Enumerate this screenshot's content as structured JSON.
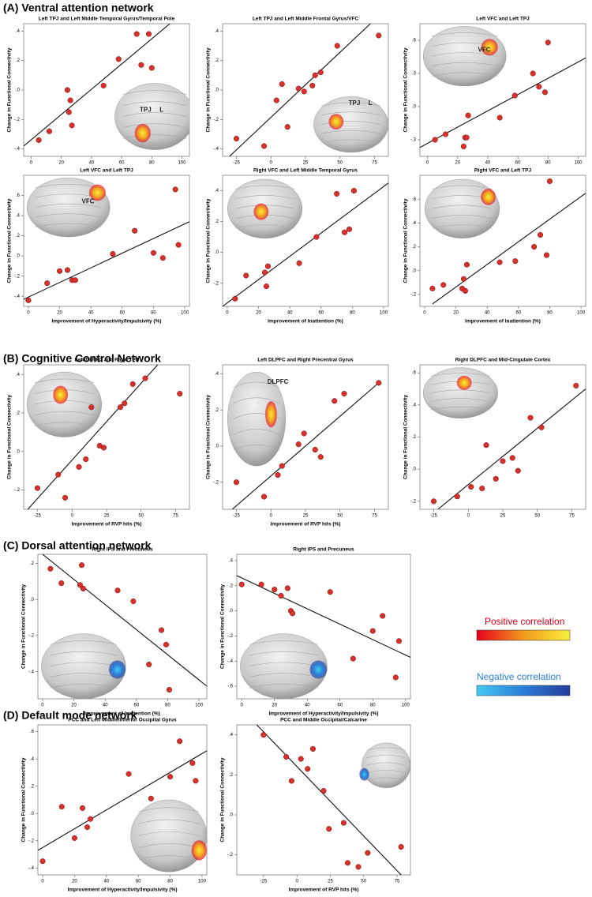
{
  "sections": [
    "(A) Ventral attention network",
    "(B) Cognitive Control Network",
    "(C) Dorsal attention network",
    "(D) Default mode network"
  ],
  "legend": {
    "positive": "Positive correlation",
    "negative": "Negative correlation"
  },
  "chart_data": [
    {
      "type": "scatter",
      "title": "Left TPJ and Left Middle Temporal Gyrus/Temporal Pole",
      "y_label": "Change in Functional Connectivity",
      "color": "#d9302c",
      "xlim": [
        -5,
        105
      ],
      "xticks": [
        0,
        20,
        40,
        60,
        80,
        100
      ],
      "ylim": [
        -0.45,
        0.45
      ],
      "yticks": [
        {
          "value": 0.4,
          "label": ".4"
        },
        {
          "value": 0.2,
          "label": ".2"
        },
        {
          "value": 0,
          "label": ".0"
        },
        {
          "value": -0.2,
          "label": "-.2"
        },
        {
          "value": -0.4,
          "label": "-.4"
        }
      ],
      "x": [
        5,
        12,
        24,
        25,
        26,
        27,
        48,
        58,
        70,
        73,
        78,
        80
      ],
      "values": [
        -0.34,
        -0.28,
        0.0,
        -0.15,
        -0.07,
        -0.24,
        0.03,
        0.21,
        0.38,
        0.17,
        0.38,
        0.15
      ],
      "fit": {
        "x": [
          -5,
          92
        ],
        "y": [
          -0.38,
          0.45
        ]
      },
      "brain_labels": [
        "TPJ",
        "L"
      ]
    },
    {
      "type": "scatter",
      "title": "Left TPJ and Left Middle Frontal Gyrus/VFC",
      "y_label": "Change in Functional Connectivity",
      "color": "#d9302c",
      "xlim": [
        -35,
        85
      ],
      "xticks": [
        -25,
        0,
        25,
        50,
        75
      ],
      "ylim": [
        -0.45,
        0.45
      ],
      "yticks": [
        {
          "value": 0.4,
          "label": ".4"
        },
        {
          "value": 0.2,
          "label": ".2"
        },
        {
          "value": 0,
          "label": ".0"
        },
        {
          "value": -0.2,
          "label": "-.2"
        },
        {
          "value": -0.4,
          "label": "-.4"
        }
      ],
      "x": [
        -25,
        -5,
        4,
        8,
        12,
        20,
        24,
        30,
        32,
        36,
        48,
        78
      ],
      "values": [
        -0.33,
        -0.38,
        -0.07,
        0.04,
        -0.25,
        0.01,
        -0.01,
        0.03,
        0.1,
        0.12,
        0.3,
        0.37
      ],
      "fit": {
        "x": [
          -30,
          72
        ],
        "y": [
          -0.45,
          0.45
        ]
      },
      "brain_labels": [
        "TPJ",
        "L"
      ]
    },
    {
      "type": "scatter",
      "title": "Left VFC and Left TPJ",
      "y_label": "Change in Functional Connectivity",
      "color": "#d9302c",
      "xlim": [
        -5,
        105
      ],
      "xticks": [
        0,
        20,
        40,
        60,
        80,
        100
      ],
      "ylim": [
        -0.45,
        0.75
      ],
      "yticks": [
        {
          "value": 0.6,
          "label": ".6"
        },
        {
          "value": 0.3,
          "label": ".3"
        },
        {
          "value": 0,
          "label": ".0"
        },
        {
          "value": -0.3,
          "label": "-.3"
        }
      ],
      "x": [
        5,
        12,
        24,
        25,
        26,
        27,
        48,
        58,
        70,
        74,
        78,
        80
      ],
      "values": [
        -0.3,
        -0.25,
        -0.36,
        -0.28,
        -0.28,
        -0.08,
        -0.1,
        0.1,
        0.3,
        0.18,
        0.13,
        0.58
      ],
      "fit": {
        "x": [
          -5,
          105
        ],
        "y": [
          -0.37,
          0.44
        ]
      },
      "brain_labels": [
        "VFC"
      ]
    },
    {
      "type": "scatter",
      "title": "Left VFC and Left TPJ",
      "x_label": "Improvement of Hyperactivity/Impulsivity (%)",
      "y_label": "Change in Functional Connectivity",
      "color": "#d9302c",
      "xlim": [
        -3,
        103
      ],
      "xticks": [
        0,
        20,
        40,
        60,
        80,
        100
      ],
      "ylim": [
        -0.5,
        0.8
      ],
      "yticks": [
        {
          "value": 0.6,
          "label": ".6"
        },
        {
          "value": 0.4,
          "label": ".4"
        },
        {
          "value": 0.2,
          "label": ".2"
        },
        {
          "value": 0,
          "label": ".0"
        },
        {
          "value": -0.2,
          "label": "-.2"
        },
        {
          "value": -0.4,
          "label": "-.4"
        }
      ],
      "x": [
        0,
        12,
        20,
        25,
        28,
        30,
        54,
        68,
        80,
        86,
        94,
        96
      ],
      "values": [
        -0.44,
        -0.27,
        -0.15,
        -0.14,
        -0.24,
        -0.24,
        0.02,
        0.25,
        0.03,
        -0.02,
        0.66,
        0.11
      ],
      "fit": {
        "x": [
          -3,
          103
        ],
        "y": [
          -0.43,
          0.34
        ]
      },
      "brain_labels": [
        "VFC"
      ]
    },
    {
      "type": "scatter",
      "title": "Right VFC and Left Middle Temporal Gyrus",
      "x_label": "Improvement of Inattention (%)",
      "y_label": "Change in Functional Connectivity",
      "color": "#d9302c",
      "xlim": [
        -3,
        103
      ],
      "xticks": [
        0,
        20,
        40,
        60,
        80,
        100
      ],
      "ylim": [
        -0.35,
        0.5
      ],
      "yticks": [
        {
          "value": 0.4,
          "label": ".4"
        },
        {
          "value": 0.2,
          "label": ".2"
        },
        {
          "value": 0,
          "label": ".0"
        },
        {
          "value": -0.2,
          "label": "-.2"
        }
      ],
      "x": [
        5,
        12,
        24,
        25,
        26,
        46,
        57,
        70,
        75,
        78,
        81
      ],
      "values": [
        -0.3,
        -0.15,
        -0.13,
        -0.22,
        -0.09,
        -0.07,
        0.1,
        0.38,
        0.13,
        0.15,
        0.4
      ],
      "fit": {
        "x": [
          -3,
          103
        ],
        "y": [
          -0.35,
          0.45
        ]
      }
    },
    {
      "type": "scatter",
      "title": "Right VFC and Left TPJ",
      "x_label": "Improvement of Inattention (%)",
      "y_label": "Change in Functional Connectivity",
      "color": "#d9302c",
      "xlim": [
        -3,
        103
      ],
      "xticks": [
        0,
        20,
        40,
        60,
        80,
        100
      ],
      "ylim": [
        -0.3,
        0.8
      ],
      "yticks": [
        {
          "value": 0.6,
          "label": ".6"
        },
        {
          "value": 0.4,
          "label": ".4"
        },
        {
          "value": 0.2,
          "label": ".2"
        },
        {
          "value": 0,
          "label": ".0"
        },
        {
          "value": -0.2,
          "label": "-.2"
        }
      ],
      "x": [
        5,
        12,
        24,
        25,
        26,
        27,
        48,
        58,
        70,
        74,
        78,
        80
      ],
      "values": [
        -0.15,
        -0.12,
        -0.15,
        -0.07,
        -0.17,
        0.05,
        0.07,
        0.08,
        0.2,
        0.3,
        0.13,
        0.75
      ],
      "fit": {
        "x": [
          5,
          103
        ],
        "y": [
          -0.28,
          0.65
        ]
      }
    },
    {
      "type": "scatter",
      "title": "Left DLPFC and Right TPJ",
      "x_label": "Improvement of RVP hits (%)",
      "y_label": "Change in Functional Connectivity",
      "color": "#d9302c",
      "xlim": [
        -35,
        85
      ],
      "xticks": [
        -25,
        0,
        25,
        50,
        75
      ],
      "ylim": [
        -0.3,
        0.45
      ],
      "yticks": [
        {
          "value": 0.4,
          "label": ".4"
        },
        {
          "value": 0.2,
          "label": ".2"
        },
        {
          "value": 0,
          "label": ".0"
        },
        {
          "value": -0.2,
          "label": "-.2"
        }
      ],
      "x": [
        -25,
        -10,
        -5,
        5,
        10,
        14,
        20,
        23,
        35,
        38,
        44,
        53,
        78
      ],
      "values": [
        -0.19,
        -0.12,
        -0.24,
        -0.08,
        -0.04,
        0.23,
        0.03,
        0.02,
        0.23,
        0.25,
        0.35,
        0.38,
        0.3
      ],
      "fit": {
        "x": [
          -32,
          62
        ],
        "y": [
          -0.3,
          0.45
        ]
      }
    },
    {
      "type": "scatter",
      "title": "Left DLPFC and Right Precentral Gyrus",
      "x_label": "Improvement of RVP hits (%)",
      "y_label": "Change in Functional Connectivity",
      "color": "#d9302c",
      "xlim": [
        -35,
        85
      ],
      "xticks": [
        -25,
        0,
        25,
        50,
        75
      ],
      "ylim": [
        -0.35,
        0.45
      ],
      "yticks": [
        {
          "value": 0.4,
          "label": ".4"
        },
        {
          "value": 0.2,
          "label": ".2"
        },
        {
          "value": 0,
          "label": ".0"
        },
        {
          "value": -0.2,
          "label": "-.2"
        }
      ],
      "x": [
        -25,
        -5,
        5,
        8,
        20,
        24,
        32,
        36,
        46,
        53,
        78
      ],
      "values": [
        -0.2,
        -0.28,
        -0.16,
        -0.11,
        0.01,
        0.07,
        -0.02,
        -0.06,
        0.25,
        0.29,
        0.35
      ],
      "fit": {
        "x": [
          -28,
          78
        ],
        "y": [
          -0.35,
          0.35
        ]
      },
      "brain_labels": [
        "DLPFC"
      ]
    },
    {
      "type": "scatter",
      "title": "Right DLPFC and Mid-Cingulate Cortex",
      "y_label": "Change in Functional Connectivity",
      "color": "#d9302c",
      "xlim": [
        -35,
        85
      ],
      "xticks": [
        -25,
        0,
        25,
        50,
        75
      ],
      "ylim": [
        -0.25,
        0.65
      ],
      "yticks": [
        {
          "value": 0.6,
          "label": ".6"
        },
        {
          "value": 0.4,
          "label": ".4"
        },
        {
          "value": 0.2,
          "label": ".2"
        },
        {
          "value": 0,
          "label": ".0"
        },
        {
          "value": -0.2,
          "label": "-.2"
        }
      ],
      "x": [
        -25,
        -8,
        2,
        10,
        13,
        20,
        25,
        32,
        36,
        45,
        53,
        78
      ],
      "values": [
        -0.2,
        -0.17,
        -0.11,
        -0.12,
        0.15,
        -0.06,
        0.05,
        0.07,
        -0.01,
        0.32,
        0.26,
        0.52
      ],
      "fit": {
        "x": [
          -22,
          85
        ],
        "y": [
          -0.25,
          0.5
        ]
      }
    },
    {
      "type": "scatter",
      "title": "Right IPS and Precuneus",
      "x_label": "Improvement of Inattention (%)",
      "y_label": "Change in Functional Connectivity",
      "color": "#d9302c",
      "xlim": [
        -3,
        105
      ],
      "xticks": [
        0,
        20,
        40,
        60,
        80,
        100
      ],
      "ylim": [
        -0.55,
        0.25
      ],
      "yticks": [
        {
          "value": 0.2,
          "label": ".2"
        },
        {
          "value": 0,
          "label": ".0"
        },
        {
          "value": -0.2,
          "label": "-.2"
        },
        {
          "value": -0.4,
          "label": "-.4"
        }
      ],
      "x": [
        5,
        12,
        24,
        25,
        26,
        48,
        58,
        68,
        76,
        79,
        81
      ],
      "values": [
        0.17,
        0.09,
        0.08,
        0.19,
        0.06,
        0.05,
        -0.01,
        -0.36,
        -0.17,
        -0.25,
        -0.5
      ],
      "fit": {
        "x": [
          0,
          105
        ],
        "y": [
          0.25,
          -0.48
        ]
      }
    },
    {
      "type": "scatter",
      "title": "Right IPS and Precuneus",
      "x_label": "Improvement of Hyperactivity/Impulsivity (%)",
      "y_label": "Change in Functional Connectivity",
      "color": "#d9302c",
      "xlim": [
        -3,
        103
      ],
      "xticks": [
        0,
        20,
        40,
        60,
        80,
        100
      ],
      "ylim": [
        -0.7,
        0.45
      ],
      "yticks": [
        {
          "value": 0.4,
          "label": ".4"
        },
        {
          "value": 0.2,
          "label": ".2"
        },
        {
          "value": 0,
          "label": ".0"
        },
        {
          "value": -0.2,
          "label": "-.2"
        },
        {
          "value": -0.4,
          "label": "-.4"
        },
        {
          "value": -0.6,
          "label": "-.6"
        }
      ],
      "x": [
        0,
        12,
        20,
        24,
        28,
        30,
        31,
        54,
        68,
        80,
        86,
        94,
        96
      ],
      "values": [
        0.21,
        0.21,
        0.17,
        0.12,
        0.18,
        0.0,
        -0.02,
        0.15,
        -0.38,
        -0.16,
        -0.04,
        -0.53,
        -0.24
      ],
      "fit": {
        "x": [
          -3,
          103
        ],
        "y": [
          0.28,
          -0.37
        ]
      }
    },
    {
      "type": "scatter",
      "title": "PCC and Left Middle/Inferior Occipital Gyrus",
      "x_label": "Improvement of Hyperactivity/Impulsivity (%)",
      "y_label": "Change in Functional Connectivity",
      "color": "#d9302c",
      "xlim": [
        -3,
        103
      ],
      "xticks": [
        0,
        20,
        40,
        60,
        80,
        100
      ],
      "ylim": [
        -0.45,
        0.65
      ],
      "yticks": [
        {
          "value": 0.6,
          "label": ".6"
        },
        {
          "value": 0.4,
          "label": ".4"
        },
        {
          "value": 0.2,
          "label": ".2"
        },
        {
          "value": 0,
          "label": ".0"
        },
        {
          "value": -0.2,
          "label": "-.2"
        },
        {
          "value": -0.4,
          "label": "-.4"
        }
      ],
      "x": [
        0,
        12,
        20,
        25,
        28,
        30,
        54,
        68,
        80,
        86,
        94,
        96
      ],
      "values": [
        -0.35,
        0.05,
        -0.18,
        0.04,
        -0.1,
        -0.04,
        0.29,
        0.11,
        0.27,
        0.53,
        0.37,
        0.24
      ],
      "fit": {
        "x": [
          -3,
          103
        ],
        "y": [
          -0.27,
          0.46
        ]
      }
    },
    {
      "type": "scatter",
      "title": "PCC and Middle Occipital/Calcarine",
      "x_label": "Improvement of RVP hits (%)",
      "y_label": "Change in Functional Connectivity",
      "color": "#d9302c",
      "xlim": [
        -45,
        85
      ],
      "xticks": [
        -25,
        0,
        25,
        50,
        75
      ],
      "ylim": [
        -0.3,
        0.45
      ],
      "yticks": [
        {
          "value": 0.4,
          "label": ".4"
        },
        {
          "value": 0.2,
          "label": ".2"
        },
        {
          "value": 0,
          "label": ".0"
        },
        {
          "value": -0.2,
          "label": "-.2"
        }
      ],
      "x": [
        -25,
        -8,
        -4,
        3,
        8,
        12,
        20,
        24,
        35,
        38,
        46,
        53,
        78
      ],
      "values": [
        0.4,
        0.29,
        0.17,
        0.28,
        0.23,
        0.33,
        0.12,
        -0.07,
        -0.04,
        -0.24,
        -0.26,
        -0.19,
        -0.16
      ],
      "fit": {
        "x": [
          -30,
          78
        ],
        "y": [
          0.45,
          -0.3
        ]
      }
    }
  ]
}
